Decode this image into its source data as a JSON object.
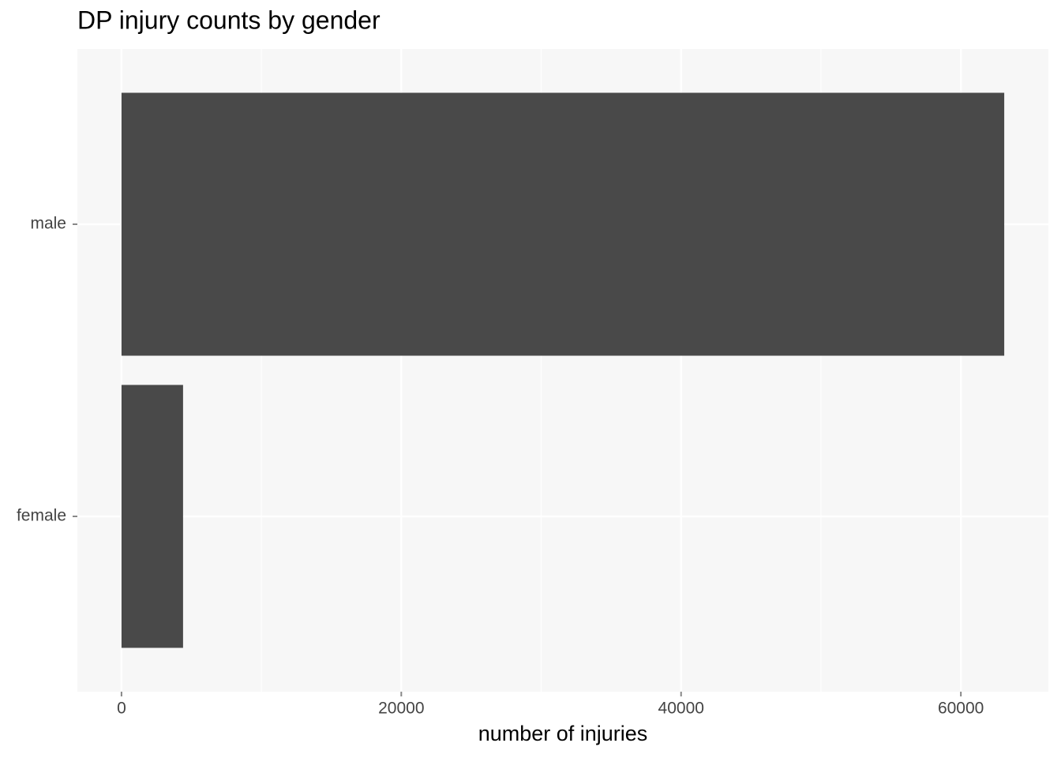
{
  "chart_data": {
    "type": "bar",
    "orientation": "horizontal",
    "title": "DP injury counts by gender",
    "categories": [
      "male",
      "female"
    ],
    "values": [
      63100,
      4400
    ],
    "color": "#494949",
    "xlabel": "number of injuries",
    "xlim": [
      -3155,
      66255
    ],
    "xticks": [
      0,
      20000,
      40000,
      60000
    ],
    "xminor": [
      10000,
      30000,
      50000
    ],
    "grid": true
  }
}
